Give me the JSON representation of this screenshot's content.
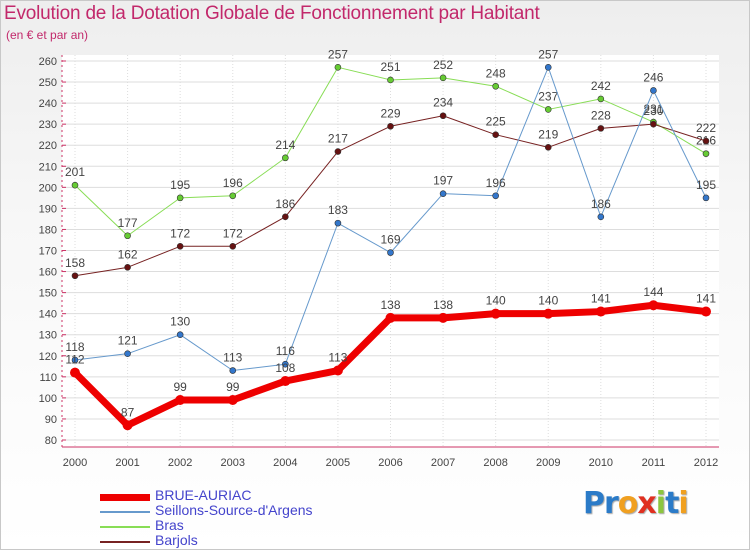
{
  "title": "Evolution de la Dotation Globale de Fonctionnement par Habitant",
  "subtitle": "(en € et par an)",
  "logo": {
    "text": "Proxiti",
    "letters": [
      {
        "ch": "P",
        "color": "#2b7bc8"
      },
      {
        "ch": "r",
        "color": "#2b7bc8"
      },
      {
        "ch": "o",
        "color": "#f0a020"
      },
      {
        "ch": "x",
        "color": "#e03020"
      },
      {
        "ch": "i",
        "color": "#8cc63f"
      },
      {
        "ch": "t",
        "color": "#2b7bc8"
      },
      {
        "ch": "i",
        "color": "#f0a020"
      }
    ]
  },
  "chart_data": {
    "type": "line",
    "categories": [
      "2000",
      "2001",
      "2002",
      "2003",
      "2004",
      "2005",
      "2006",
      "2007",
      "2008",
      "2009",
      "2010",
      "2011",
      "2012"
    ],
    "ylim": [
      80,
      260
    ],
    "yticks": [
      80,
      90,
      100,
      110,
      120,
      130,
      140,
      150,
      160,
      170,
      180,
      190,
      200,
      210,
      220,
      230,
      240,
      250,
      260
    ],
    "grid": true,
    "legend_position": "bottom-left",
    "series": [
      {
        "name": "Bras",
        "color": "#88dd55",
        "marker": "#66cc33",
        "width": 1,
        "values": [
          201,
          177,
          195,
          196,
          214,
          257,
          251,
          252,
          248,
          237,
          242,
          231,
          216
        ],
        "labels": [
          "201",
          "177",
          "195",
          "196",
          "214",
          "257",
          "251",
          "252",
          "248",
          "237",
          "242",
          "231",
          "216"
        ]
      },
      {
        "name": "Barjols",
        "color": "#772222",
        "marker": "#661111",
        "width": 1,
        "values": [
          158,
          162,
          172,
          172,
          186,
          217,
          229,
          234,
          225,
          219,
          228,
          230,
          222
        ],
        "labels": [
          "158",
          "162",
          "172",
          "172",
          "186",
          "217",
          "229",
          "234",
          "225",
          "219",
          "228",
          "230",
          "222"
        ]
      },
      {
        "name": "Seillons-Source-d'Argens",
        "color": "#6699cc",
        "marker": "#3377cc",
        "width": 1,
        "values": [
          118,
          121,
          130,
          113,
          116,
          183,
          169,
          197,
          196,
          257,
          186,
          246,
          195
        ],
        "labels": [
          "118",
          "121",
          "130",
          "113",
          "116",
          "183",
          "169",
          "197",
          "196",
          "257",
          "186",
          "246",
          "195"
        ]
      },
      {
        "name": "BRUE-AURIAC",
        "color": "#ee0000",
        "marker": "#ee0000",
        "width": 7,
        "values": [
          112,
          87,
          99,
          99,
          108,
          113,
          138,
          138,
          140,
          140,
          141,
          144,
          141
        ],
        "labels": [
          "112",
          "87",
          "99",
          "99",
          "108",
          "113",
          "138",
          "138",
          "140",
          "140",
          "141",
          "144",
          "141"
        ]
      }
    ],
    "legend_order": [
      "BRUE-AURIAC",
      "Seillons-Source-d'Argens",
      "Bras",
      "Barjols"
    ]
  }
}
